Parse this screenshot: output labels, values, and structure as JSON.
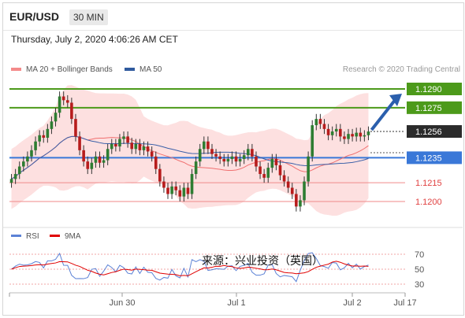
{
  "header": {
    "symbol": "EUR/USD",
    "timeframe": "30 MIN"
  },
  "datetime": "Thursday, July 2, 2020 4:06:26 AM CET",
  "legend": {
    "ma20_label": "MA 20 + Bollinger Bands",
    "ma20_color": "#f48a8a",
    "ma50_label": "MA 50",
    "ma50_color": "#2f5a9e",
    "research": "Research © 2020 Trading Central"
  },
  "rsi_legend": {
    "rsi_label": "RSI",
    "rsi_color": "#5b82d6",
    "ma9_label": "9MA",
    "ma9_color": "#e00000"
  },
  "watermark": "来源：兴业投资（英国）",
  "chart_data": {
    "type": "candlestick",
    "price_range": [
      1.118,
      1.13
    ],
    "levels": [
      {
        "value": 1.129,
        "label": "1.1290",
        "kind": "resistance",
        "color": "#4c9a1a"
      },
      {
        "value": 1.1275,
        "label": "1.1275",
        "kind": "resistance",
        "color": "#4c9a1a"
      },
      {
        "value": 1.1256,
        "label": "1.1256",
        "kind": "last",
        "color": "#333333"
      },
      {
        "value": 1.1235,
        "label": "1.1235",
        "kind": "pivot",
        "color": "#3a78d8"
      },
      {
        "value": 1.1215,
        "label": "1.1215",
        "kind": "support",
        "color": "#e04040"
      },
      {
        "value": 1.12,
        "label": "1.1200",
        "kind": "support",
        "color": "#e04040"
      }
    ],
    "x_ticks": [
      "Jun 30",
      "Jul 1",
      "Jul 2",
      "Jul 17"
    ],
    "rsi_ticks": [
      70,
      50,
      30
    ],
    "closes": [
      1.1218,
      1.1222,
      1.1228,
      1.1232,
      1.1236,
      1.1241,
      1.1248,
      1.1253,
      1.1251,
      1.1258,
      1.1264,
      1.1271,
      1.1284,
      1.1281,
      1.1279,
      1.1266,
      1.1252,
      1.1241,
      1.1232,
      1.1226,
      1.1231,
      1.1236,
      1.1231,
      1.1233,
      1.1242,
      1.1246,
      1.1244,
      1.125,
      1.1252,
      1.1247,
      1.1242,
      1.1246,
      1.1241,
      1.1244,
      1.124,
      1.1236,
      1.1226,
      1.1216,
      1.1211,
      1.1206,
      1.1212,
      1.1209,
      1.1204,
      1.1211,
      1.1206,
      1.1222,
      1.1232,
      1.1242,
      1.1248,
      1.1242,
      1.1238,
      1.1236,
      1.1234,
      1.1232,
      1.1234,
      1.1236,
      1.1232,
      1.1234,
      1.1237,
      1.1242,
      1.1236,
      1.1228,
      1.1222,
      1.1219,
      1.1227,
      1.1234,
      1.1229,
      1.1221,
      1.1216,
      1.1211,
      1.1206,
      1.1196,
      1.1201,
      1.1216,
      1.1236,
      1.1261,
      1.1266,
      1.1262,
      1.1258,
      1.1253,
      1.1256,
      1.1258,
      1.1252,
      1.125,
      1.1254,
      1.1252,
      1.1255,
      1.1252,
      1.1253,
      1.1256
    ],
    "projection": {
      "from": 1.1256,
      "to": 1.129
    }
  }
}
